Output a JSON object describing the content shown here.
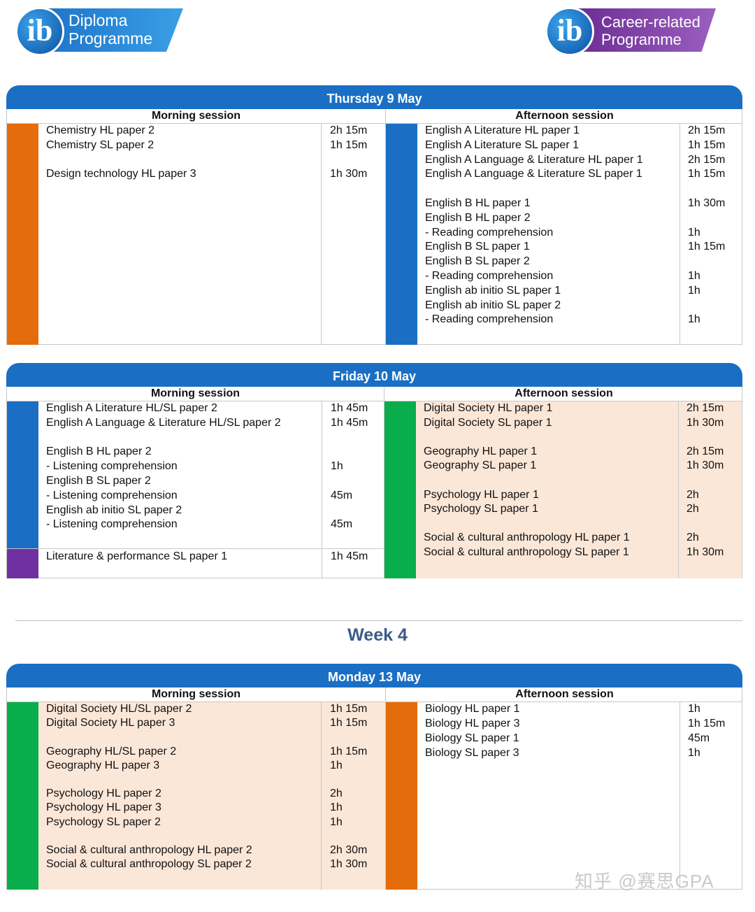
{
  "logos": {
    "diploma": {
      "mark": "ib",
      "line1": "Diploma",
      "line2": "Programme"
    },
    "career": {
      "mark": "ib",
      "line1": "Career-related",
      "line2": "Programme"
    }
  },
  "sessions": {
    "morning": "Morning session",
    "afternoon": "Afternoon session"
  },
  "days": [
    {
      "title": "Thursday 9 May",
      "morning": [
        {
          "color": "orange",
          "rows": [
            {
              "name": "Chemistry HL paper 2",
              "time": "2h 15m"
            },
            {
              "name": "Chemistry SL paper 2",
              "time": "1h 15m"
            },
            {
              "name": "",
              "time": ""
            },
            {
              "name": "Design technology HL paper 3",
              "time": "1h 30m"
            }
          ]
        }
      ],
      "afternoon": [
        {
          "color": "blue",
          "rows": [
            {
              "name": "English A Literature HL paper 1",
              "time": "2h 15m"
            },
            {
              "name": "English A Literature SL paper 1",
              "time": "1h 15m"
            },
            {
              "name": "English A Language & Literature HL paper 1",
              "time": "2h 15m"
            },
            {
              "name": "English A Language & Literature SL paper 1",
              "time": "1h 15m"
            },
            {
              "name": "",
              "time": ""
            },
            {
              "name": "English B HL paper 1",
              "time": "1h 30m"
            },
            {
              "name": "English B HL paper 2",
              "time": ""
            },
            {
              "name": "- Reading comprehension",
              "time": "1h"
            },
            {
              "name": "English B SL paper 1",
              "time": "1h 15m"
            },
            {
              "name": "English B SL paper 2",
              "time": ""
            },
            {
              "name": "- Reading comprehension",
              "time": "1h"
            },
            {
              "name": "English ab initio SL paper 1",
              "time": "1h"
            },
            {
              "name": "English ab initio SL paper 2",
              "time": ""
            },
            {
              "name": "- Reading comprehension",
              "time": "1h"
            }
          ]
        }
      ]
    },
    {
      "title": "Friday 10 May",
      "morning": [
        {
          "color": "blue",
          "rows": [
            {
              "name": "English A Literature HL/SL paper 2",
              "time": "1h 45m"
            },
            {
              "name": "English A Language & Literature HL/SL paper 2",
              "time": "1h 45m"
            },
            {
              "name": "",
              "time": ""
            },
            {
              "name": "English B HL paper 2",
              "time": ""
            },
            {
              "name": "- Listening comprehension",
              "time": "1h"
            },
            {
              "name": "English B SL paper 2",
              "time": ""
            },
            {
              "name": "- Listening comprehension",
              "time": "45m"
            },
            {
              "name": "English ab initio SL paper 2",
              "time": ""
            },
            {
              "name": "- Listening comprehension",
              "time": "45m"
            }
          ]
        },
        {
          "color": "purple",
          "rows": [
            {
              "name": "Literature & performance SL paper 1",
              "time": "1h 45m"
            }
          ]
        }
      ],
      "afternoon": [
        {
          "color": "green",
          "rows": [
            {
              "name": "Digital Society HL paper 1",
              "time": "2h 15m"
            },
            {
              "name": "Digital Society SL paper 1",
              "time": "1h 30m"
            },
            {
              "name": "",
              "time": ""
            },
            {
              "name": "Geography HL paper 1",
              "time": "2h 15m"
            },
            {
              "name": "Geography SL paper 1",
              "time": "1h 30m"
            },
            {
              "name": "",
              "time": ""
            },
            {
              "name": "Psychology HL paper 1",
              "time": "2h"
            },
            {
              "name": "Psychology SL paper 1",
              "time": "2h"
            },
            {
              "name": "",
              "time": ""
            },
            {
              "name": "Social & cultural anthropology HL paper 1",
              "time": "2h"
            },
            {
              "name": "Social & cultural anthropology SL paper 1",
              "time": "1h 30m"
            }
          ]
        }
      ]
    },
    {
      "title": "Monday 13 May",
      "morning": [
        {
          "color": "green",
          "rows": [
            {
              "name": "Digital Society HL/SL paper 2",
              "time": "1h 15m"
            },
            {
              "name": "Digital Society HL paper 3",
              "time": "1h 15m"
            },
            {
              "name": "",
              "time": ""
            },
            {
              "name": "Geography HL/SL paper 2",
              "time": "1h 15m"
            },
            {
              "name": "Geography HL paper 3",
              "time": "1h"
            },
            {
              "name": "",
              "time": ""
            },
            {
              "name": "Psychology HL paper 2",
              "time": "2h"
            },
            {
              "name": "Psychology HL paper 3",
              "time": "1h"
            },
            {
              "name": "Psychology SL paper 2",
              "time": "1h"
            },
            {
              "name": "",
              "time": ""
            },
            {
              "name": "Social & cultural anthropology HL paper 2",
              "time": "2h 30m"
            },
            {
              "name": "Social & cultural anthropology SL paper 2",
              "time": "1h 30m"
            }
          ]
        }
      ],
      "afternoon": [
        {
          "color": "orange",
          "rows": [
            {
              "name": "Biology HL paper 1",
              "time": "1h"
            },
            {
              "name": "Biology HL paper 3",
              "time": "1h 15m"
            },
            {
              "name": "Biology SL paper 1",
              "time": "45m"
            },
            {
              "name": "Biology SL paper 3",
              "time": "1h"
            }
          ]
        }
      ]
    }
  ],
  "week_title": "Week 4",
  "watermark": "知乎 @赛思GPA"
}
